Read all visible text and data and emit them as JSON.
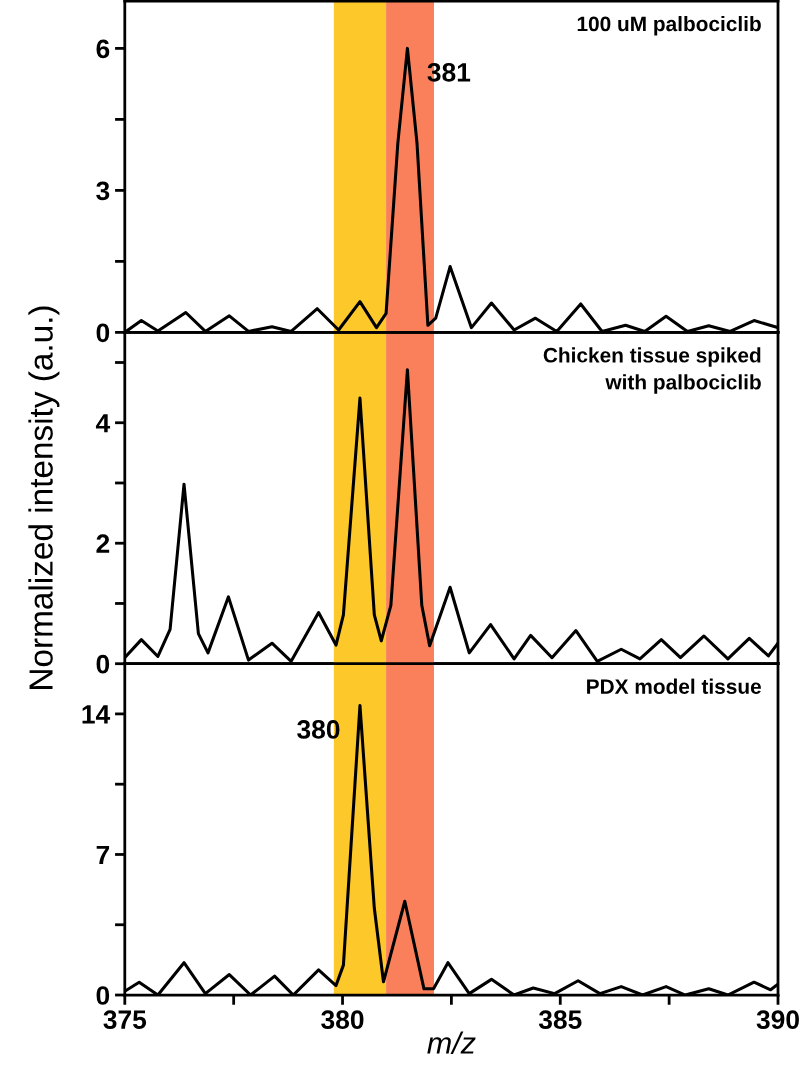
{
  "chart_data": [
    {
      "type": "line",
      "title": "100 uM palbociclib",
      "xlim": [
        375,
        390
      ],
      "ylim": [
        0,
        7
      ],
      "yticks": [
        0,
        {
          "value": 1.5,
          "label": null
        },
        3,
        {
          "value": 4.5,
          "label": null
        },
        6
      ],
      "tick_labels": "y",
      "grid": false,
      "legend": false,
      "marker": "none",
      "line_style": "solid",
      "bands": [
        {
          "axis": "x",
          "from": 379.8,
          "to": 381.0,
          "color": "#fdc82a"
        },
        {
          "axis": "x",
          "from": 381.0,
          "to": 382.1,
          "color": "#f9805a"
        }
      ],
      "annotations": [
        {
          "text": "381",
          "x": 381.49,
          "y": 6.0
        }
      ],
      "series": [
        {
          "color": "#000000",
          "x": [
            375.0,
            375.38,
            375.76,
            376.4,
            376.85,
            377.4,
            377.84,
            378.38,
            378.82,
            379.42,
            379.91,
            380.4,
            380.78,
            381.0,
            381.27,
            381.49,
            381.71,
            381.96,
            382.14,
            382.47,
            382.96,
            383.42,
            383.94,
            384.43,
            384.92,
            385.47,
            385.96,
            386.5,
            386.94,
            387.43,
            387.92,
            388.41,
            388.9,
            389.45,
            390.0
          ],
          "values": [
            0.0,
            0.25,
            0.03,
            0.42,
            0.02,
            0.35,
            0.02,
            0.12,
            0.02,
            0.5,
            0.05,
            0.65,
            0.1,
            0.4,
            4.0,
            6.0,
            4.0,
            0.15,
            0.3,
            1.39,
            0.1,
            0.62,
            0.05,
            0.3,
            0.02,
            0.6,
            0.02,
            0.15,
            0.02,
            0.34,
            0.02,
            0.14,
            0.02,
            0.25,
            0.1
          ]
        }
      ]
    },
    {
      "type": "line",
      "title": "Chicken tissue spiked\nwith palbociclib",
      "ylabel": "Normalized intensity (a.u.)",
      "xlim": [
        375,
        390
      ],
      "ylim": [
        0,
        5.5
      ],
      "yticks": [
        0,
        {
          "value": 1,
          "label": null
        },
        2,
        {
          "value": 3,
          "label": null
        },
        4,
        {
          "value": 5,
          "label": null
        }
      ],
      "tick_labels": "y",
      "grid": false,
      "legend": false,
      "marker": "none",
      "line_style": "solid",
      "bands": [
        {
          "axis": "x",
          "from": 379.8,
          "to": 381.0,
          "color": "#fdc82a"
        },
        {
          "axis": "x",
          "from": 381.0,
          "to": 382.1,
          "color": "#f9805a"
        }
      ],
      "series": [
        {
          "color": "#000000",
          "x": [
            375.0,
            375.38,
            375.76,
            376.04,
            376.36,
            376.69,
            376.91,
            377.38,
            377.84,
            378.38,
            378.82,
            379.45,
            379.85,
            380.02,
            380.4,
            380.73,
            380.89,
            381.11,
            381.49,
            381.82,
            382.0,
            382.47,
            382.91,
            383.4,
            383.94,
            384.32,
            384.81,
            385.36,
            385.85,
            386.4,
            386.83,
            387.32,
            387.76,
            388.3,
            388.85,
            389.34,
            389.78,
            390.0
          ],
          "values": [
            0.1,
            0.4,
            0.12,
            0.57,
            2.98,
            0.5,
            0.18,
            1.11,
            0.06,
            0.34,
            0.04,
            0.85,
            0.31,
            0.81,
            4.41,
            0.81,
            0.38,
            0.97,
            4.88,
            0.97,
            0.3,
            1.27,
            0.18,
            0.65,
            0.08,
            0.47,
            0.1,
            0.55,
            0.04,
            0.24,
            0.08,
            0.4,
            0.1,
            0.46,
            0.08,
            0.42,
            0.13,
            0.34
          ]
        }
      ]
    },
    {
      "type": "line",
      "title": "PDX model tissue",
      "xlabel": "m/z",
      "xlim": [
        375,
        390
      ],
      "xticks": [
        375,
        {
          "value": 377.5,
          "label": null
        },
        380,
        {
          "value": 382.5,
          "label": null
        },
        385,
        {
          "value": 387.5,
          "label": null
        },
        390
      ],
      "ylim": [
        0,
        16.5
      ],
      "yticks": [
        0,
        {
          "value": 3.5,
          "label": null
        },
        7,
        {
          "value": 10.5,
          "label": null
        },
        14
      ],
      "grid": false,
      "legend": false,
      "marker": "none",
      "line_style": "solid",
      "bands": [
        {
          "axis": "x",
          "from": 379.8,
          "to": 381.0,
          "color": "#fdc82a"
        },
        {
          "axis": "x",
          "from": 381.0,
          "to": 382.1,
          "color": "#f9805a"
        }
      ],
      "annotations": [
        {
          "text": "380",
          "x": 380.4,
          "y": 14.42
        }
      ],
      "series": [
        {
          "color": "#000000",
          "x": [
            375.0,
            375.33,
            375.76,
            376.36,
            376.85,
            377.4,
            377.89,
            378.44,
            378.87,
            379.45,
            379.85,
            380.02,
            380.4,
            380.73,
            380.94,
            381.43,
            381.87,
            382.09,
            382.42,
            382.91,
            383.42,
            383.94,
            384.38,
            384.87,
            385.41,
            385.91,
            386.4,
            386.89,
            387.43,
            387.87,
            388.41,
            388.85,
            389.45,
            389.83,
            390.0
          ],
          "values": [
            0.19,
            0.64,
            0.0,
            1.61,
            0.07,
            1.02,
            0.0,
            0.94,
            0.0,
            1.25,
            0.47,
            1.49,
            14.42,
            4.32,
            0.66,
            4.67,
            0.31,
            0.31,
            1.61,
            0.07,
            0.78,
            0.0,
            0.35,
            0.07,
            0.71,
            0.07,
            0.42,
            0.0,
            0.42,
            0.0,
            0.31,
            0.0,
            0.64,
            0.26,
            0.54
          ]
        }
      ]
    }
  ]
}
